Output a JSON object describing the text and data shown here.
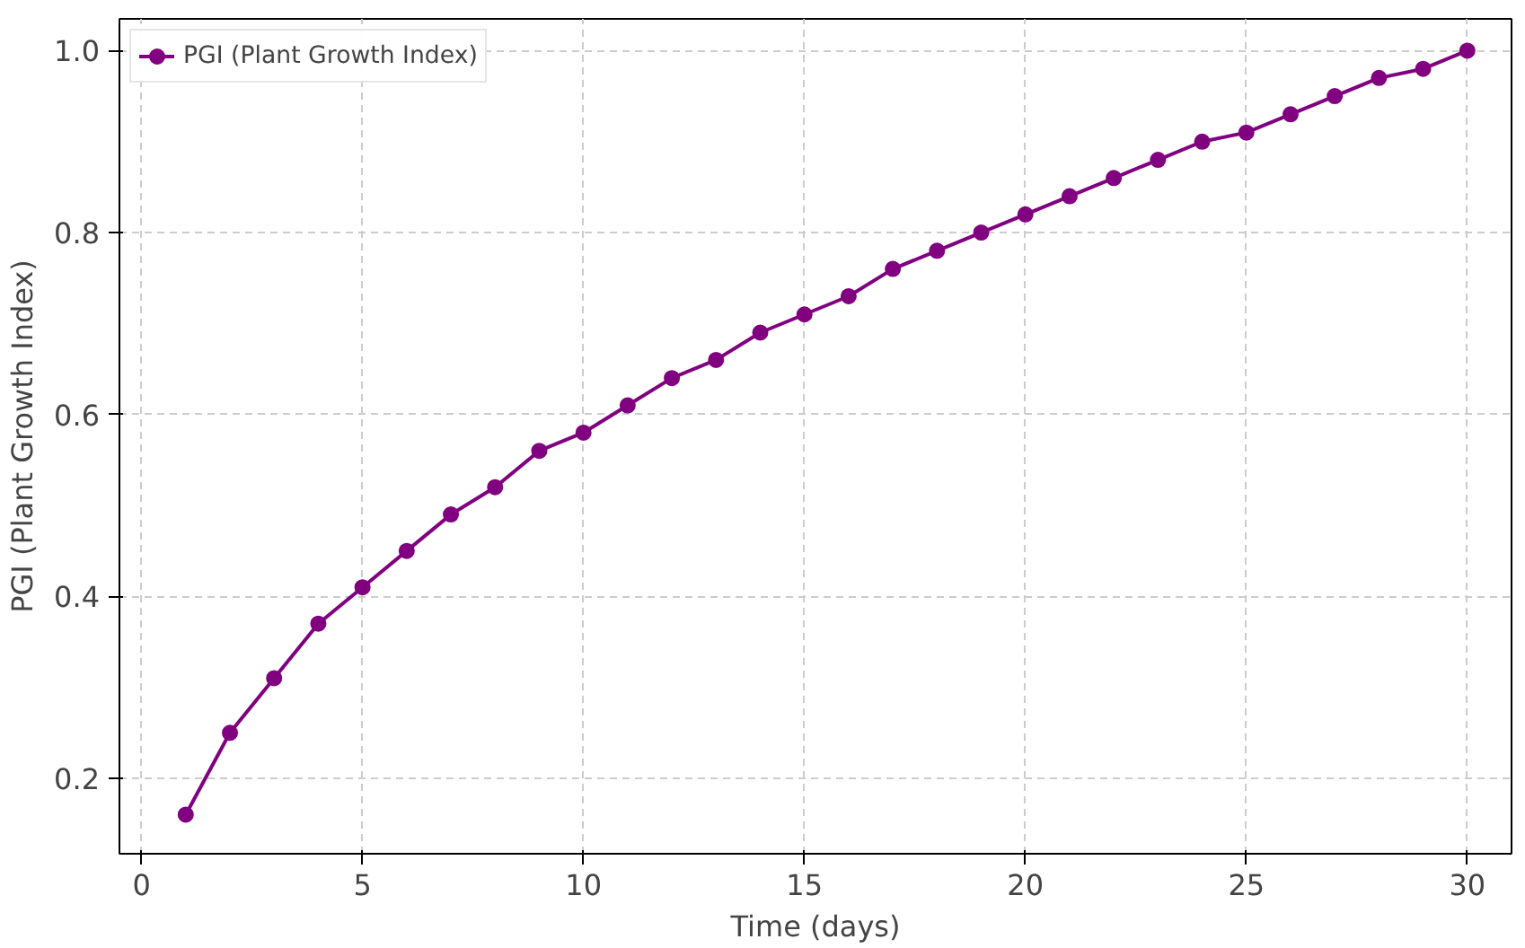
{
  "chart_data": {
    "type": "line",
    "xlabel": "Time (days)",
    "ylabel": "PGI (Plant Growth Index)",
    "x": [
      1,
      2,
      3,
      4,
      5,
      6,
      7,
      8,
      9,
      10,
      11,
      12,
      13,
      14,
      15,
      16,
      17,
      18,
      19,
      20,
      21,
      22,
      23,
      24,
      25,
      26,
      27,
      28,
      29,
      30
    ],
    "series": [
      {
        "name": "PGI (Plant Growth Index)",
        "color": "#800080",
        "values": [
          0.16,
          0.25,
          0.31,
          0.37,
          0.41,
          0.45,
          0.49,
          0.52,
          0.56,
          0.58,
          0.61,
          0.64,
          0.66,
          0.69,
          0.71,
          0.73,
          0.76,
          0.78,
          0.8,
          0.82,
          0.84,
          0.86,
          0.88,
          0.9,
          0.91,
          0.93,
          0.95,
          0.97,
          0.98,
          1.0
        ]
      }
    ],
    "xlim": [
      -0.5,
      31
    ],
    "ylim": [
      0.117,
      1.035
    ],
    "xticks": [
      0,
      5,
      10,
      15,
      20,
      25,
      30
    ],
    "yticks": [
      0.2,
      0.4,
      0.6,
      0.8,
      {
        "value": 1,
        "label": "1.0"
      }
    ],
    "grid": true,
    "legend": "top left",
    "marker": "circle",
    "line_style": "solid"
  }
}
